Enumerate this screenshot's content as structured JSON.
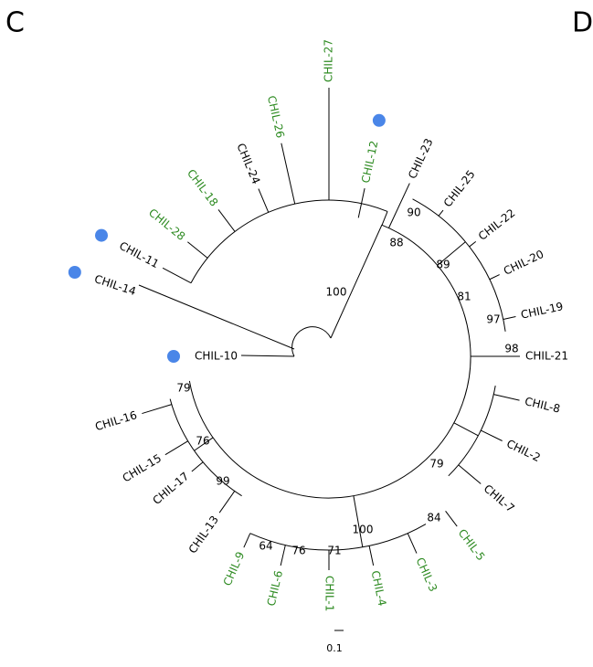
{
  "panel_labels": [
    "C",
    "D"
  ],
  "leaves": [
    {
      "label": "CHIL-27",
      "color": "#2e8b22",
      "marked": false
    },
    {
      "label": "CHIL-26",
      "color": "#2e8b22",
      "marked": false
    },
    {
      "label": "CHIL-24",
      "color": "#000000",
      "marked": false
    },
    {
      "label": "CHIL-18",
      "color": "#2e8b22",
      "marked": false
    },
    {
      "label": "CHIL-28",
      "color": "#2e8b22",
      "marked": false
    },
    {
      "label": "CHIL-11",
      "color": "#000000",
      "marked": true
    },
    {
      "label": "CHIL-14",
      "color": "#000000",
      "marked": true
    },
    {
      "label": "CHIL-10",
      "color": "#000000",
      "marked": true
    },
    {
      "label": "CHIL-12",
      "color": "#2e8b22",
      "marked": true
    },
    {
      "label": "CHIL-23",
      "color": "#000000",
      "marked": false
    },
    {
      "label": "CHIL-25",
      "color": "#000000",
      "marked": false
    },
    {
      "label": "CHIL-22",
      "color": "#000000",
      "marked": false
    },
    {
      "label": "CHIL-20",
      "color": "#000000",
      "marked": false
    },
    {
      "label": "CHIL-19",
      "color": "#000000",
      "marked": false
    },
    {
      "label": "CHIL-21",
      "color": "#000000",
      "marked": false
    },
    {
      "label": "CHIL-8",
      "color": "#000000",
      "marked": false
    },
    {
      "label": "CHIL-2",
      "color": "#000000",
      "marked": false
    },
    {
      "label": "CHIL-7",
      "color": "#000000",
      "marked": false
    },
    {
      "label": "CHIL-5",
      "color": "#2e8b22",
      "marked": false
    },
    {
      "label": "CHIL-3",
      "color": "#2e8b22",
      "marked": false
    },
    {
      "label": "CHIL-4",
      "color": "#2e8b22",
      "marked": false
    },
    {
      "label": "CHIL-1",
      "color": "#2e8b22",
      "marked": false
    },
    {
      "label": "CHIL-6",
      "color": "#2e8b22",
      "marked": false
    },
    {
      "label": "CHIL-9",
      "color": "#2e8b22",
      "marked": false
    },
    {
      "label": "CHIL-13",
      "color": "#000000",
      "marked": false
    },
    {
      "label": "CHIL-17",
      "color": "#000000",
      "marked": false
    },
    {
      "label": "CHIL-15",
      "color": "#000000",
      "marked": false
    },
    {
      "label": "CHIL-16",
      "color": "#000000",
      "marked": false
    }
  ],
  "bootstrap": [
    100,
    90,
    88,
    89,
    81,
    97,
    98,
    79,
    76,
    99,
    79,
    100,
    84,
    64,
    76,
    71
  ],
  "scale": 0.1
}
